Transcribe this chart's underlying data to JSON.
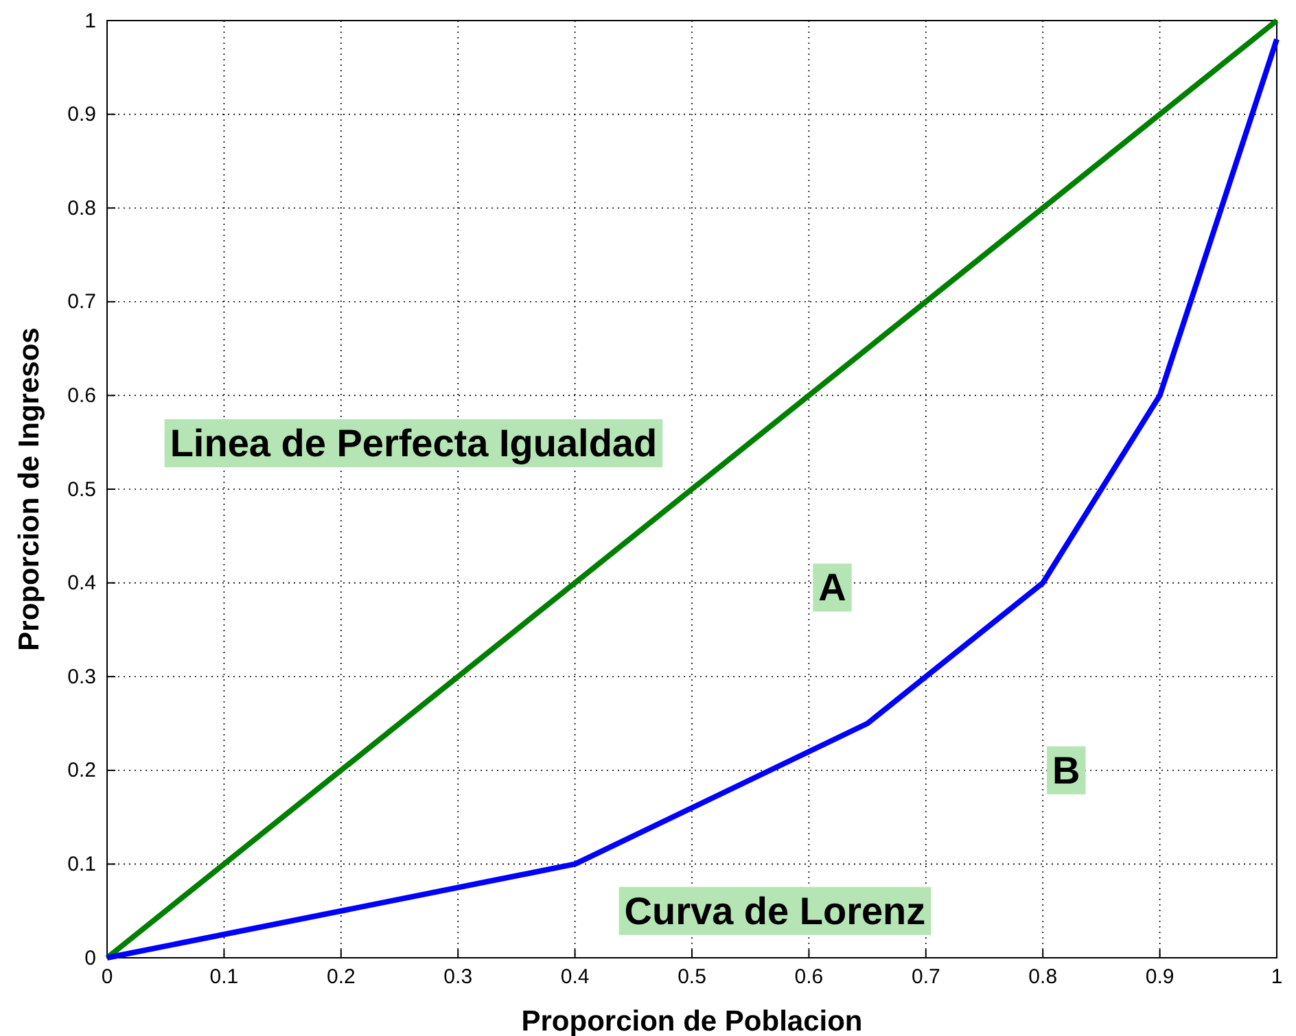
{
  "chart_data": {
    "type": "line",
    "xlabel": "Proporcion de Poblacion",
    "ylabel": "Proporcion de Ingresos",
    "x": [
      0,
      0.4,
      0.65,
      0.8,
      0.9,
      1
    ],
    "series": [
      {
        "color": "#008000",
        "x": [
          0,
          1
        ],
        "values": [
          0,
          1
        ]
      },
      {
        "color": "#0000ff",
        "values": [
          0,
          0.1,
          0.25,
          0.4,
          0.6,
          0.98
        ]
      }
    ],
    "xlim": [
      0,
      1
    ],
    "ylim": [
      0,
      1
    ],
    "xticks": [
      0,
      0.1,
      0.2,
      0.3,
      0.4,
      0.5,
      0.6,
      0.7,
      0.8,
      0.9,
      1
    ],
    "yticks": [
      0,
      0.1,
      0.2,
      0.3,
      0.4,
      0.5,
      0.6,
      0.7,
      0.8,
      0.9,
      1
    ],
    "grid": true,
    "line_style": "solid",
    "marker": "none",
    "annotations": [
      "Linea de Perfecta Igualdad",
      {
        "text": "A",
        "x": 0.62,
        "y": 0.395
      },
      {
        "text": "B",
        "x": 0.82,
        "y": 0.2
      },
      "Curva de Lorenz"
    ]
  }
}
